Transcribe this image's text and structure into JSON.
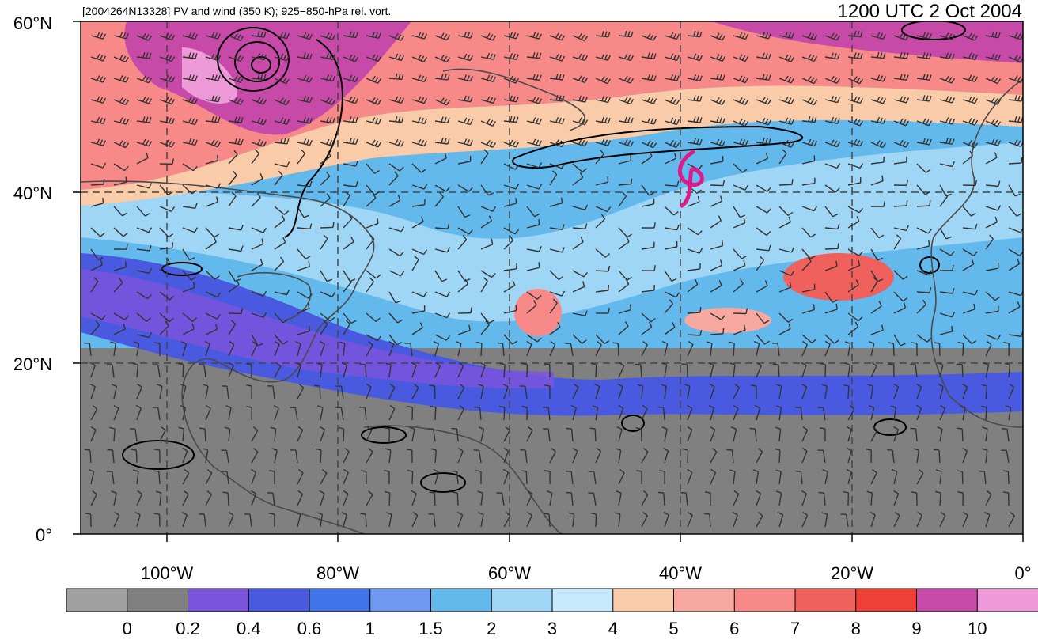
{
  "header": {
    "left_title": "[2004264N13328] PV and wind (350 K); 925−850-hPa rel. vort.",
    "right_title": "1200 UTC 2 Oct 2004"
  },
  "map": {
    "lat_labels": [
      "60°N",
      "40°N",
      "20°N",
      "0°"
    ],
    "lon_labels": [
      "100°W",
      "80°W",
      "60°W",
      "40°W",
      "20°W",
      "0°"
    ],
    "storm_symbol": "tropical-cyclone-icon",
    "storm_color": "#e0198a"
  },
  "colorbar": {
    "colors": [
      "#a0a0a0",
      "#808080",
      "#7a55dc",
      "#4a5ae0",
      "#3f75e8",
      "#6f98f0",
      "#63b8ec",
      "#9fd5f5",
      "#c8e9fb",
      "#f9cba8",
      "#f7a8a0",
      "#f78a88",
      "#f0605c",
      "#ef4038",
      "#c84aa8",
      "#ee9ad8"
    ],
    "labels": [
      "0",
      "0.2",
      "0.4",
      "0.6",
      "1",
      "1.5",
      "2",
      "3",
      "4",
      "5",
      "6",
      "7",
      "8",
      "9",
      "10"
    ]
  }
}
